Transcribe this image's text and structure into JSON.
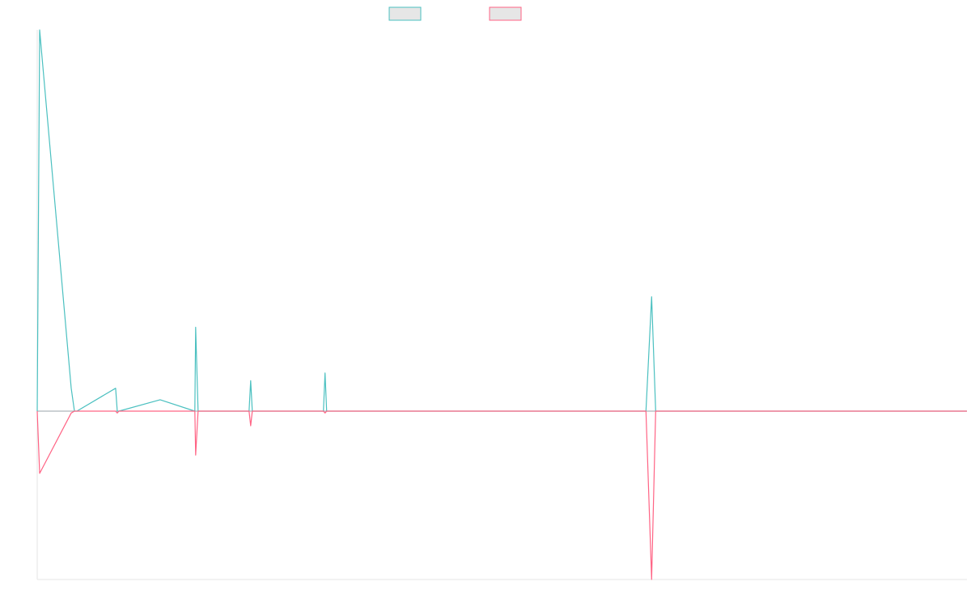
{
  "colors": {
    "series_a": "#4bc0c0",
    "series_b": "#ff6384",
    "legend_fill": "#e6e6e6",
    "axis": "#e5e5e5",
    "baseline": "#9aa3a8"
  },
  "chart_data": {
    "type": "line",
    "legend_position": "top-center",
    "grid": false,
    "x": [
      0,
      3,
      42,
      46,
      49,
      97,
      99,
      101,
      152,
      195,
      196,
      199,
      262,
      264,
      266,
      354,
      356,
      358,
      753,
      760,
      765,
      1150
    ],
    "series": [
      {
        "values": [
          0,
          100,
          6,
          0,
          0,
          6,
          0,
          0,
          3,
          0,
          22,
          0,
          0,
          8,
          0,
          0,
          10,
          0,
          0,
          30,
          0,
          0
        ]
      },
      {
        "values": [
          0,
          -17,
          -0.5,
          0,
          0,
          0,
          -0.5,
          0,
          0,
          0,
          -12,
          0,
          0,
          -4,
          0,
          0,
          -0.5,
          0,
          0,
          -46,
          0,
          0
        ]
      }
    ],
    "ylim": [
      -46,
      100
    ]
  }
}
